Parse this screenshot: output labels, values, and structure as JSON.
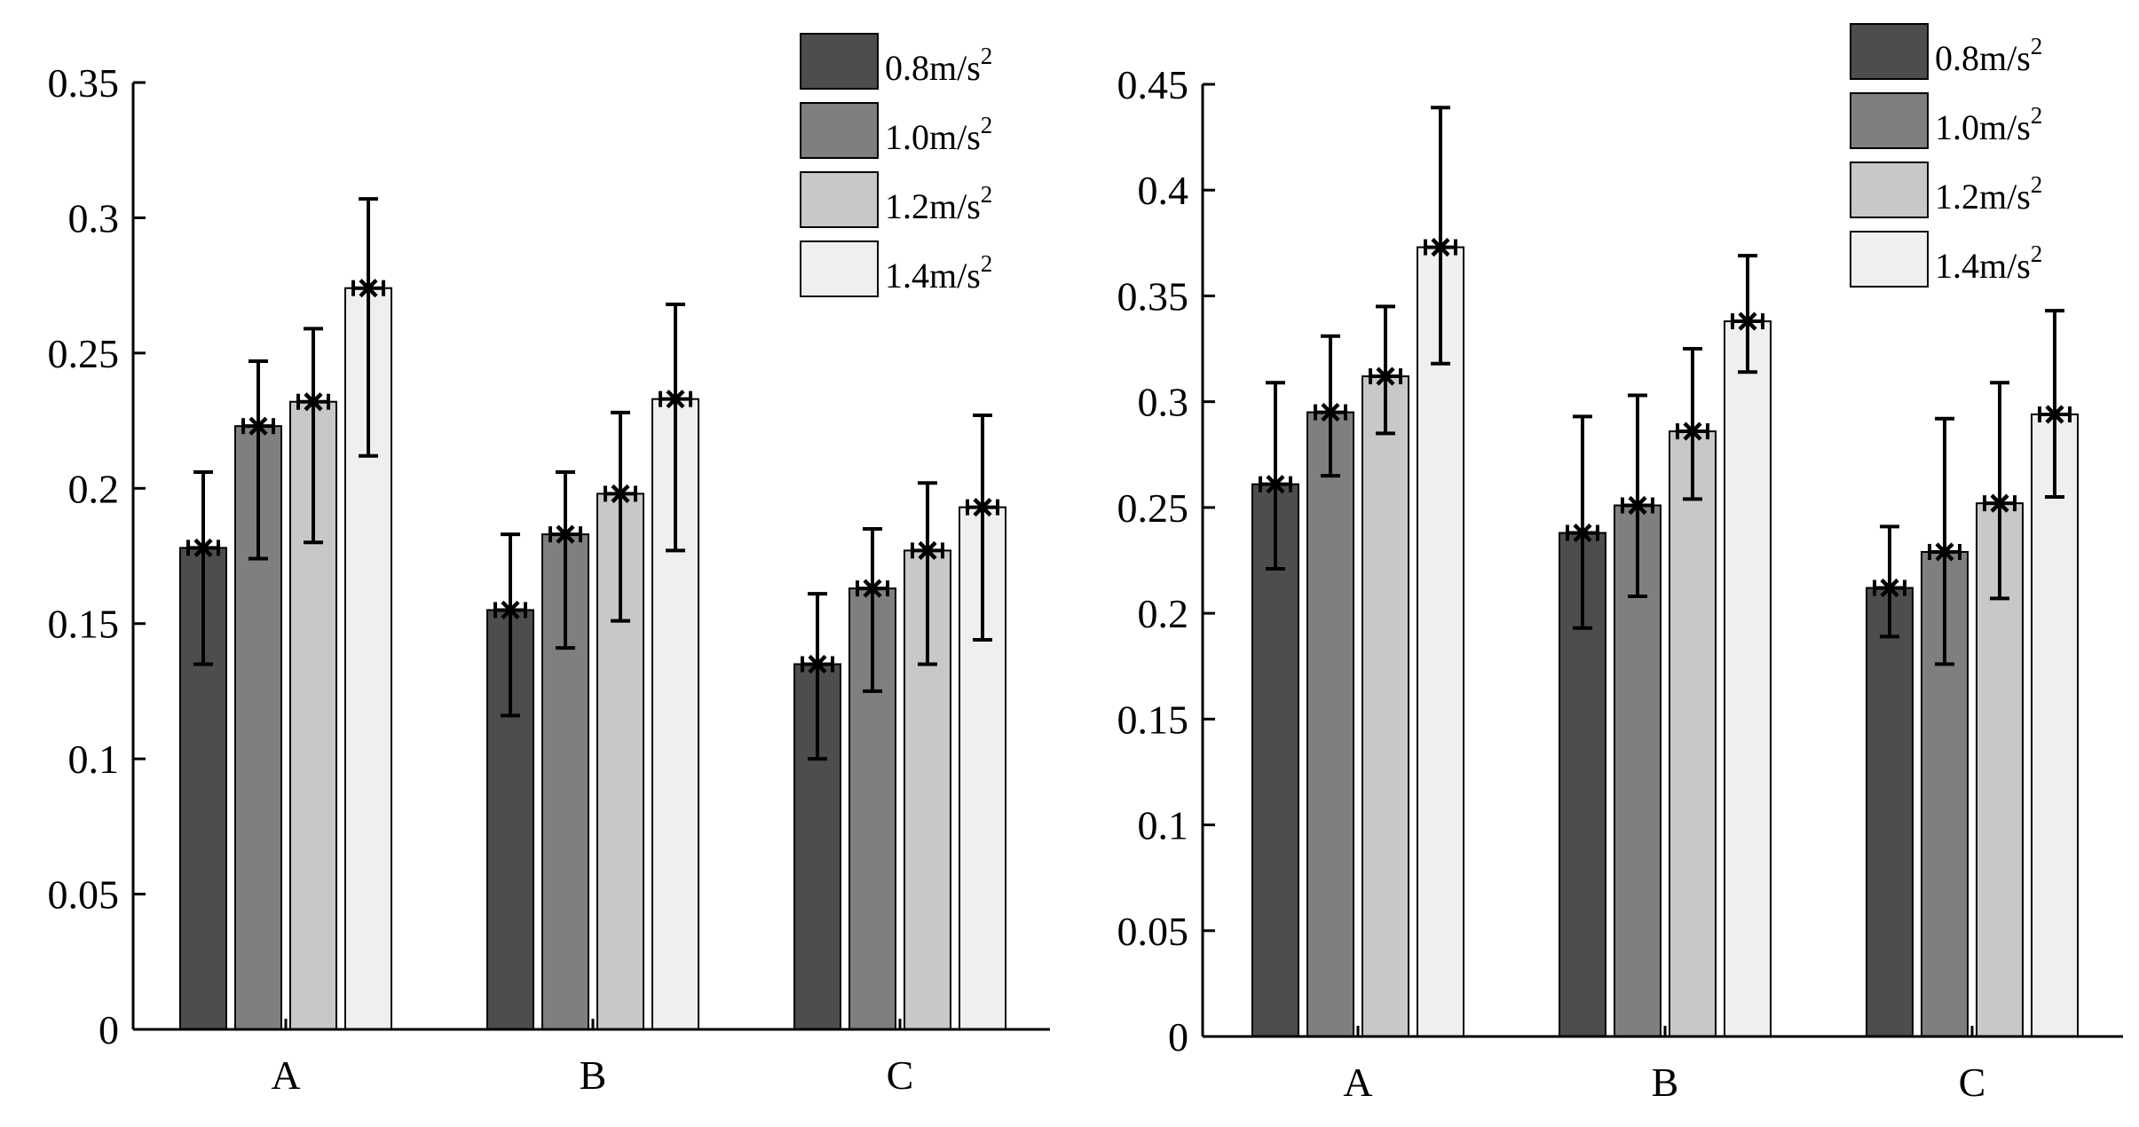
{
  "chart_data": [
    {
      "type": "bar",
      "categories": [
        "A",
        "B",
        "C"
      ],
      "ylim": [
        0,
        0.35
      ],
      "yticks": [
        0,
        0.05,
        0.1,
        0.15,
        0.2,
        0.25,
        0.3,
        0.35
      ],
      "ytick_labels": [
        "0",
        "0.05",
        "0.1",
        "0.15",
        "0.2",
        "0.25",
        "0.3",
        "0.35"
      ],
      "legend_position": "top-right",
      "series": [
        {
          "name": "0.8m/s",
          "name_base": "0.8m/s",
          "name_sup": "2",
          "color": "#4d4d4d",
          "values": [
            0.178,
            0.155,
            0.135
          ],
          "err_low": [
            0.135,
            0.116,
            0.1
          ],
          "err_high": [
            0.206,
            0.183,
            0.161
          ]
        },
        {
          "name": "1.0m/s",
          "name_base": "1.0m/s",
          "name_sup": "2",
          "color": "#7f7f7f",
          "values": [
            0.223,
            0.183,
            0.163
          ],
          "err_low": [
            0.174,
            0.141,
            0.125
          ],
          "err_high": [
            0.247,
            0.206,
            0.185
          ]
        },
        {
          "name": "1.2m/s",
          "name_base": "1.2m/s",
          "name_sup": "2",
          "color": "#c8c8c8",
          "values": [
            0.232,
            0.198,
            0.177
          ],
          "err_low": [
            0.18,
            0.151,
            0.135
          ],
          "err_high": [
            0.259,
            0.228,
            0.202
          ]
        },
        {
          "name": "1.4m/s",
          "name_base": "1.4m/s",
          "name_sup": "2",
          "color": "#efefef",
          "values": [
            0.274,
            0.233,
            0.193
          ],
          "err_low": [
            0.212,
            0.177,
            0.144
          ],
          "err_high": [
            0.307,
            0.268,
            0.227
          ]
        }
      ]
    },
    {
      "type": "bar",
      "categories": [
        "A",
        "B",
        "C"
      ],
      "ylim": [
        0,
        0.45
      ],
      "yticks": [
        0,
        0.05,
        0.1,
        0.15,
        0.2,
        0.25,
        0.3,
        0.35,
        0.4,
        0.45
      ],
      "ytick_labels": [
        "0",
        "0.05",
        "0.1",
        "0.15",
        "0.2",
        "0.25",
        "0.3",
        "0.35",
        "0.4",
        "0.45"
      ],
      "legend_position": "top-right",
      "series": [
        {
          "name": "0.8m/s",
          "name_base": "0.8m/s",
          "name_sup": "2",
          "color": "#4d4d4d",
          "values": [
            0.261,
            0.238,
            0.212
          ],
          "err_low": [
            0.221,
            0.193,
            0.189
          ],
          "err_high": [
            0.309,
            0.293,
            0.241
          ]
        },
        {
          "name": "1.0m/s",
          "name_base": "1.0m/s",
          "name_sup": "2",
          "color": "#7f7f7f",
          "values": [
            0.295,
            0.251,
            0.229
          ],
          "err_low": [
            0.265,
            0.208,
            0.176
          ],
          "err_high": [
            0.331,
            0.303,
            0.292
          ]
        },
        {
          "name": "1.2m/s",
          "name_base": "1.2m/s",
          "name_sup": "2",
          "color": "#c8c8c8",
          "values": [
            0.312,
            0.286,
            0.252
          ],
          "err_low": [
            0.285,
            0.254,
            0.207
          ],
          "err_high": [
            0.345,
            0.325,
            0.309
          ]
        },
        {
          "name": "1.4m/s",
          "name_base": "1.4m/s",
          "name_sup": "2",
          "color": "#efefef",
          "values": [
            0.373,
            0.338,
            0.294
          ],
          "err_low": [
            0.318,
            0.314,
            0.255
          ],
          "err_high": [
            0.439,
            0.369,
            0.343
          ]
        }
      ]
    }
  ]
}
